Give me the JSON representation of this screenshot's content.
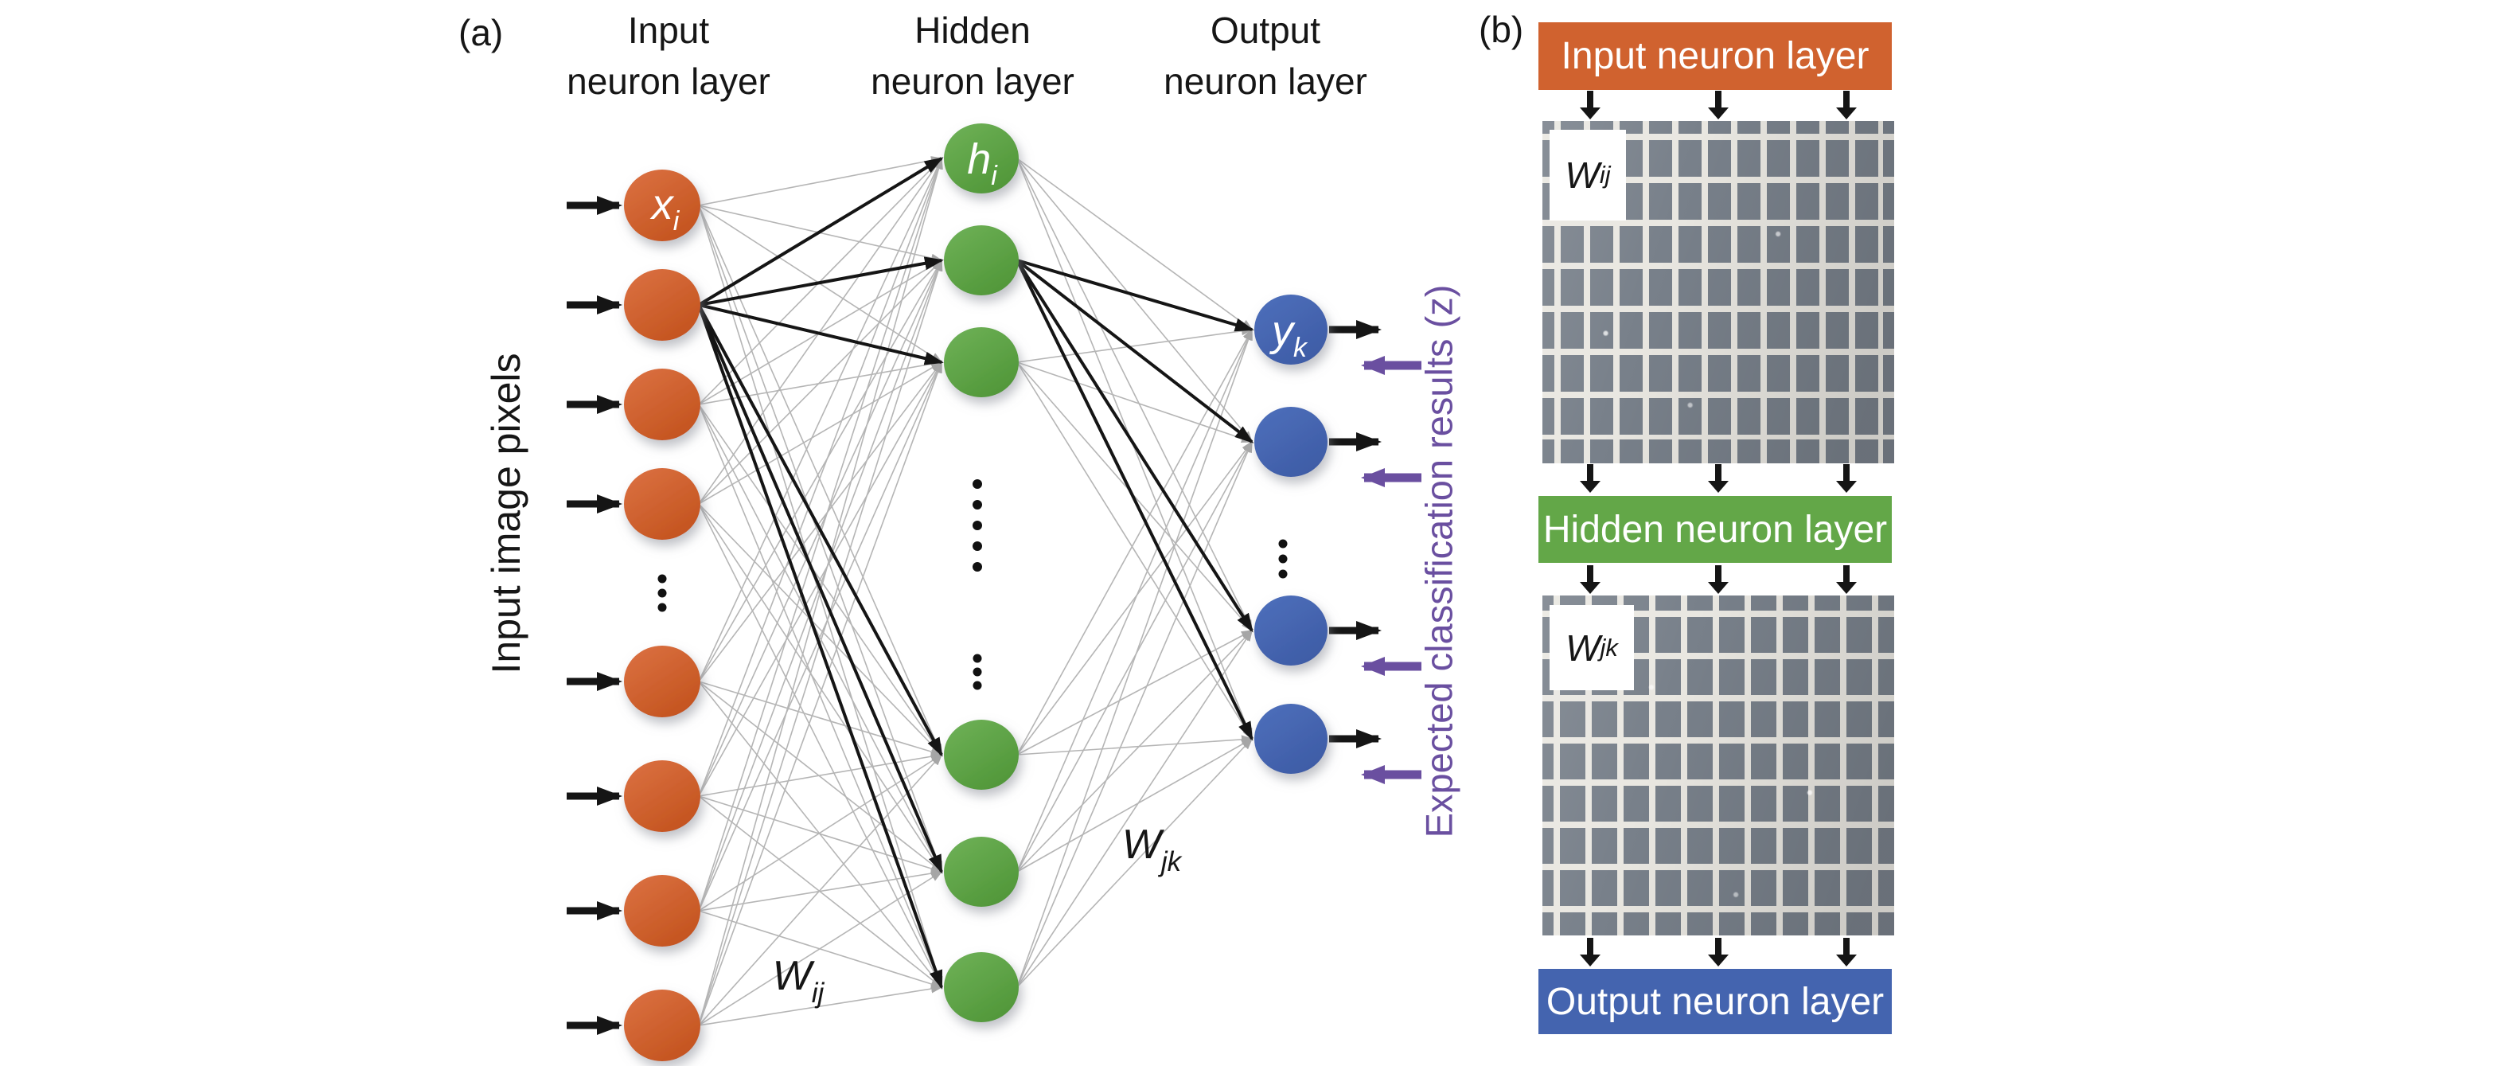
{
  "panel_a": {
    "label": "(a)",
    "headings": {
      "input": {
        "line1": "Input",
        "line2": "neuron layer"
      },
      "hidden": {
        "line1": "Hidden",
        "line2": "neuron layer"
      },
      "output": {
        "line1": "Output",
        "line2": "neuron layer"
      }
    },
    "left_axis_label": "Input image pixels",
    "right_axis_label": "Expected classification results (z)",
    "neuron_labels": {
      "input": {
        "main": "x",
        "sub": "i"
      },
      "hidden": {
        "main": "h",
        "sub": "i"
      },
      "output": {
        "main": "y",
        "sub": "k"
      }
    },
    "weight_labels": {
      "input_hidden": {
        "main": "W",
        "sub": "ij"
      },
      "hidden_output": {
        "main": "W",
        "sub": "jk"
      }
    },
    "neuron_counts": {
      "input_shown": 8,
      "hidden_shown": 6,
      "output_shown": 4
    }
  },
  "panel_b": {
    "label": "(b)",
    "banners": [
      {
        "id": "input",
        "text": "Input neuron layer"
      },
      {
        "id": "hidden",
        "text": "Hidden neuron layer"
      },
      {
        "id": "output",
        "text": "Output neuron layer"
      }
    ],
    "weight_labels": [
      {
        "main": "W",
        "sub": "ij"
      },
      {
        "main": "W",
        "sub": "jk"
      }
    ]
  },
  "colors": {
    "orange": "#D0622F",
    "orange_light": "#DC7243",
    "orange_dark": "#C4541F",
    "green": "#63A748",
    "green_light": "#6FB258",
    "green_dark": "#519739",
    "blue": "#4464AF",
    "blue_light": "#4E70BC",
    "blue_dark": "#3E5CA6",
    "purple": "#6A4FA0",
    "line_gray": "#B5B5B5",
    "arrowhead_gray": "#A6A6A6",
    "ink": "#161616",
    "sem_cell": "#78808A",
    "sem_line": "#E9E7E1"
  }
}
